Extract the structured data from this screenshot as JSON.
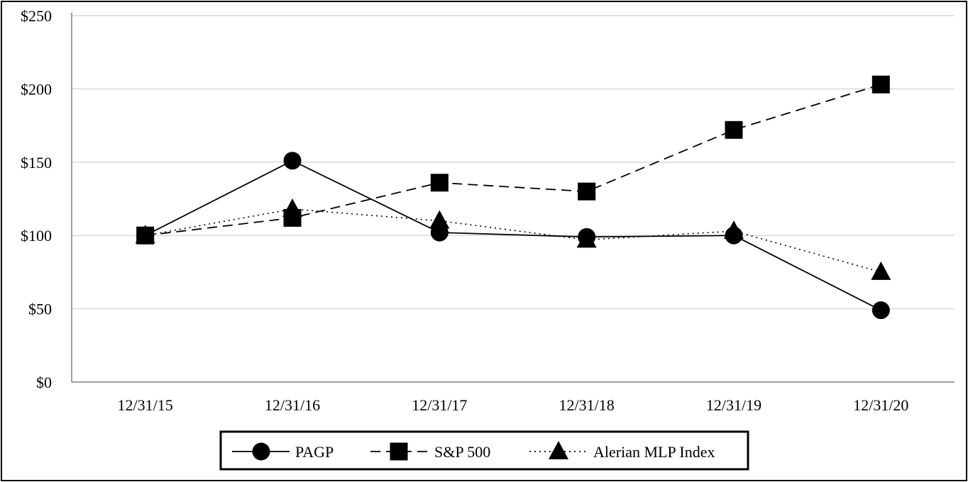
{
  "chart_data": {
    "type": "line",
    "title": "",
    "xlabel": "",
    "ylabel": "",
    "categories": [
      "12/31/15",
      "12/31/16",
      "12/31/17",
      "12/31/18",
      "12/31/19",
      "12/31/20"
    ],
    "y_ticks": [
      "$0",
      "$50",
      "$100",
      "$150",
      "$200",
      "$250"
    ],
    "y_tick_values": [
      0,
      50,
      100,
      150,
      200,
      250
    ],
    "ylim": [
      0,
      250
    ],
    "grid": true,
    "legend_position": "bottom",
    "series": [
      {
        "name": "PAGP",
        "marker": "circle",
        "line_style": "solid",
        "color": "#000000",
        "values": [
          100,
          151,
          102,
          99,
          100,
          49
        ]
      },
      {
        "name": "S&P 500",
        "marker": "square",
        "line_style": "dashed",
        "color": "#000000",
        "values": [
          100,
          112,
          136,
          130,
          172,
          203
        ]
      },
      {
        "name": "Alerian MLP Index",
        "marker": "triangle",
        "line_style": "dotted",
        "color": "#000000",
        "values": [
          100,
          118,
          110,
          97,
          103,
          75
        ]
      }
    ]
  }
}
